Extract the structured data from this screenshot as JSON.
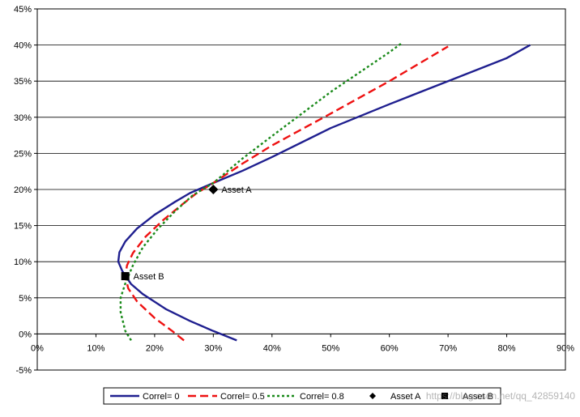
{
  "chart_data": {
    "type": "line",
    "title": "",
    "xlabel": "",
    "ylabel": "",
    "xlim": [
      0,
      0.9
    ],
    "ylim": [
      -0.05,
      0.45
    ],
    "x_ticks": [
      "0%",
      "10%",
      "20%",
      "30%",
      "40%",
      "50%",
      "60%",
      "70%",
      "80%",
      "90%"
    ],
    "y_ticks": [
      "-5%",
      "0%",
      "5%",
      "10%",
      "15%",
      "20%",
      "25%",
      "30%",
      "35%",
      "40%",
      "45%"
    ],
    "grid": "horizontal",
    "legend_position": "bottom",
    "series": [
      {
        "name": "Correl= 0",
        "color": "#1f1f8f",
        "dash": "solid",
        "points": [
          [
            0.34,
            -0.009
          ],
          [
            0.3,
            0.004
          ],
          [
            0.26,
            0.018
          ],
          [
            0.22,
            0.034
          ],
          [
            0.18,
            0.055
          ],
          [
            0.16,
            0.069
          ],
          [
            0.145,
            0.087
          ],
          [
            0.138,
            0.1
          ],
          [
            0.14,
            0.113
          ],
          [
            0.15,
            0.128
          ],
          [
            0.17,
            0.146
          ],
          [
            0.2,
            0.165
          ],
          [
            0.235,
            0.183
          ],
          [
            0.26,
            0.195
          ],
          [
            0.3,
            0.209
          ],
          [
            0.35,
            0.226
          ],
          [
            0.4,
            0.245
          ],
          [
            0.5,
            0.285
          ],
          [
            0.6,
            0.318
          ],
          [
            0.7,
            0.35
          ],
          [
            0.8,
            0.382
          ],
          [
            0.84,
            0.4
          ]
        ]
      },
      {
        "name": "Correl= 0.5",
        "color": "#ee1111",
        "dash": "dash",
        "points": [
          [
            0.25,
            -0.009
          ],
          [
            0.23,
            0.004
          ],
          [
            0.2,
            0.022
          ],
          [
            0.17,
            0.045
          ],
          [
            0.155,
            0.063
          ],
          [
            0.15,
            0.08
          ],
          [
            0.153,
            0.095
          ],
          [
            0.163,
            0.112
          ],
          [
            0.185,
            0.135
          ],
          [
            0.215,
            0.158
          ],
          [
            0.245,
            0.178
          ],
          [
            0.27,
            0.194
          ],
          [
            0.3,
            0.209
          ],
          [
            0.35,
            0.236
          ],
          [
            0.4,
            0.261
          ],
          [
            0.5,
            0.305
          ],
          [
            0.6,
            0.35
          ],
          [
            0.7,
            0.398
          ]
        ]
      },
      {
        "name": "Correl= 0.8",
        "color": "#1a8a1a",
        "dash": "dot",
        "points": [
          [
            0.16,
            -0.009
          ],
          [
            0.15,
            0.004
          ],
          [
            0.142,
            0.03
          ],
          [
            0.142,
            0.05
          ],
          [
            0.15,
            0.07
          ],
          [
            0.163,
            0.095
          ],
          [
            0.18,
            0.12
          ],
          [
            0.205,
            0.145
          ],
          [
            0.235,
            0.17
          ],
          [
            0.265,
            0.192
          ],
          [
            0.3,
            0.209
          ],
          [
            0.35,
            0.243
          ],
          [
            0.4,
            0.274
          ],
          [
            0.5,
            0.335
          ],
          [
            0.6,
            0.39
          ],
          [
            0.62,
            0.402
          ]
        ]
      }
    ],
    "markers": [
      {
        "name": "Asset A",
        "label": "Asset A",
        "shape": "diamond",
        "x": 0.3,
        "y": 0.2
      },
      {
        "name": "Asset B",
        "label": "Asset B",
        "shape": "square",
        "x": 0.15,
        "y": 0.08
      }
    ],
    "watermark": "https://blog.csdn.net/qq_42859140"
  }
}
